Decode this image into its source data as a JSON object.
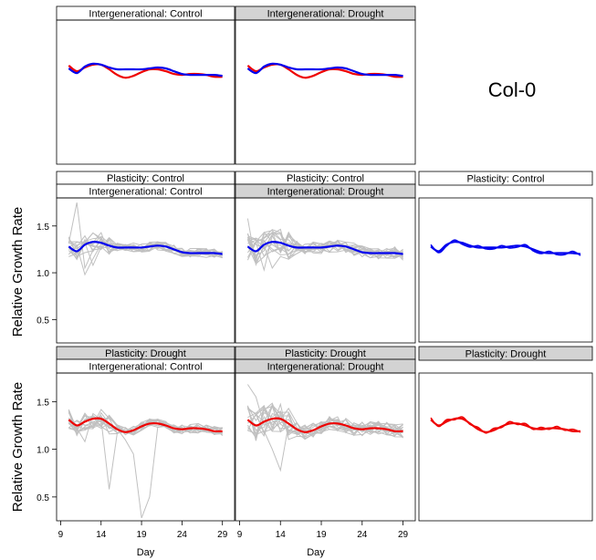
{
  "strip_labels": {
    "ig_control": "Intergenerational: Control",
    "ig_drought": "Intergenerational: Drought",
    "pl_control": "Plasticity: Control",
    "pl_drought": "Plasticity: Drought"
  },
  "genotype_label": "Col-0",
  "colors": {
    "control": "#0000ee",
    "drought": "#ee0000",
    "individual": "#c0c0c0",
    "strip_plain": "#ffffff",
    "strip_shaded": "#d3d3d3"
  },
  "chart_data": {
    "type": "line",
    "ylabel": "Relative Growth Rate",
    "xlabel": "Day",
    "x_ticks": [
      9,
      14,
      19,
      24,
      29
    ],
    "y_ticks": [
      0.5,
      1.0,
      1.5
    ],
    "y_tick_labels": [
      "0.5",
      "1.0",
      "1.5"
    ],
    "xlim": [
      8.5,
      30.5
    ],
    "ylim": [
      0.25,
      1.8
    ],
    "series": [
      {
        "color": "blue",
        "x": [
          10,
          11,
          12,
          13,
          14,
          15,
          16,
          17,
          18,
          19,
          20,
          21,
          22,
          23,
          24,
          25,
          26,
          27,
          28,
          29
        ],
        "y": [
          1.28,
          1.23,
          1.3,
          1.33,
          1.32,
          1.29,
          1.27,
          1.27,
          1.27,
          1.27,
          1.28,
          1.29,
          1.28,
          1.25,
          1.22,
          1.21,
          1.21,
          1.21,
          1.21,
          1.2
        ]
      },
      {
        "color": "red",
        "x": [
          10,
          11,
          12,
          13,
          14,
          15,
          16,
          17,
          18,
          19,
          20,
          21,
          22,
          23,
          24,
          25,
          26,
          27,
          28,
          29
        ],
        "y": [
          1.31,
          1.25,
          1.29,
          1.32,
          1.32,
          1.27,
          1.21,
          1.18,
          1.2,
          1.24,
          1.27,
          1.27,
          1.25,
          1.22,
          1.21,
          1.22,
          1.22,
          1.21,
          1.19,
          1.19
        ]
      }
    ]
  }
}
